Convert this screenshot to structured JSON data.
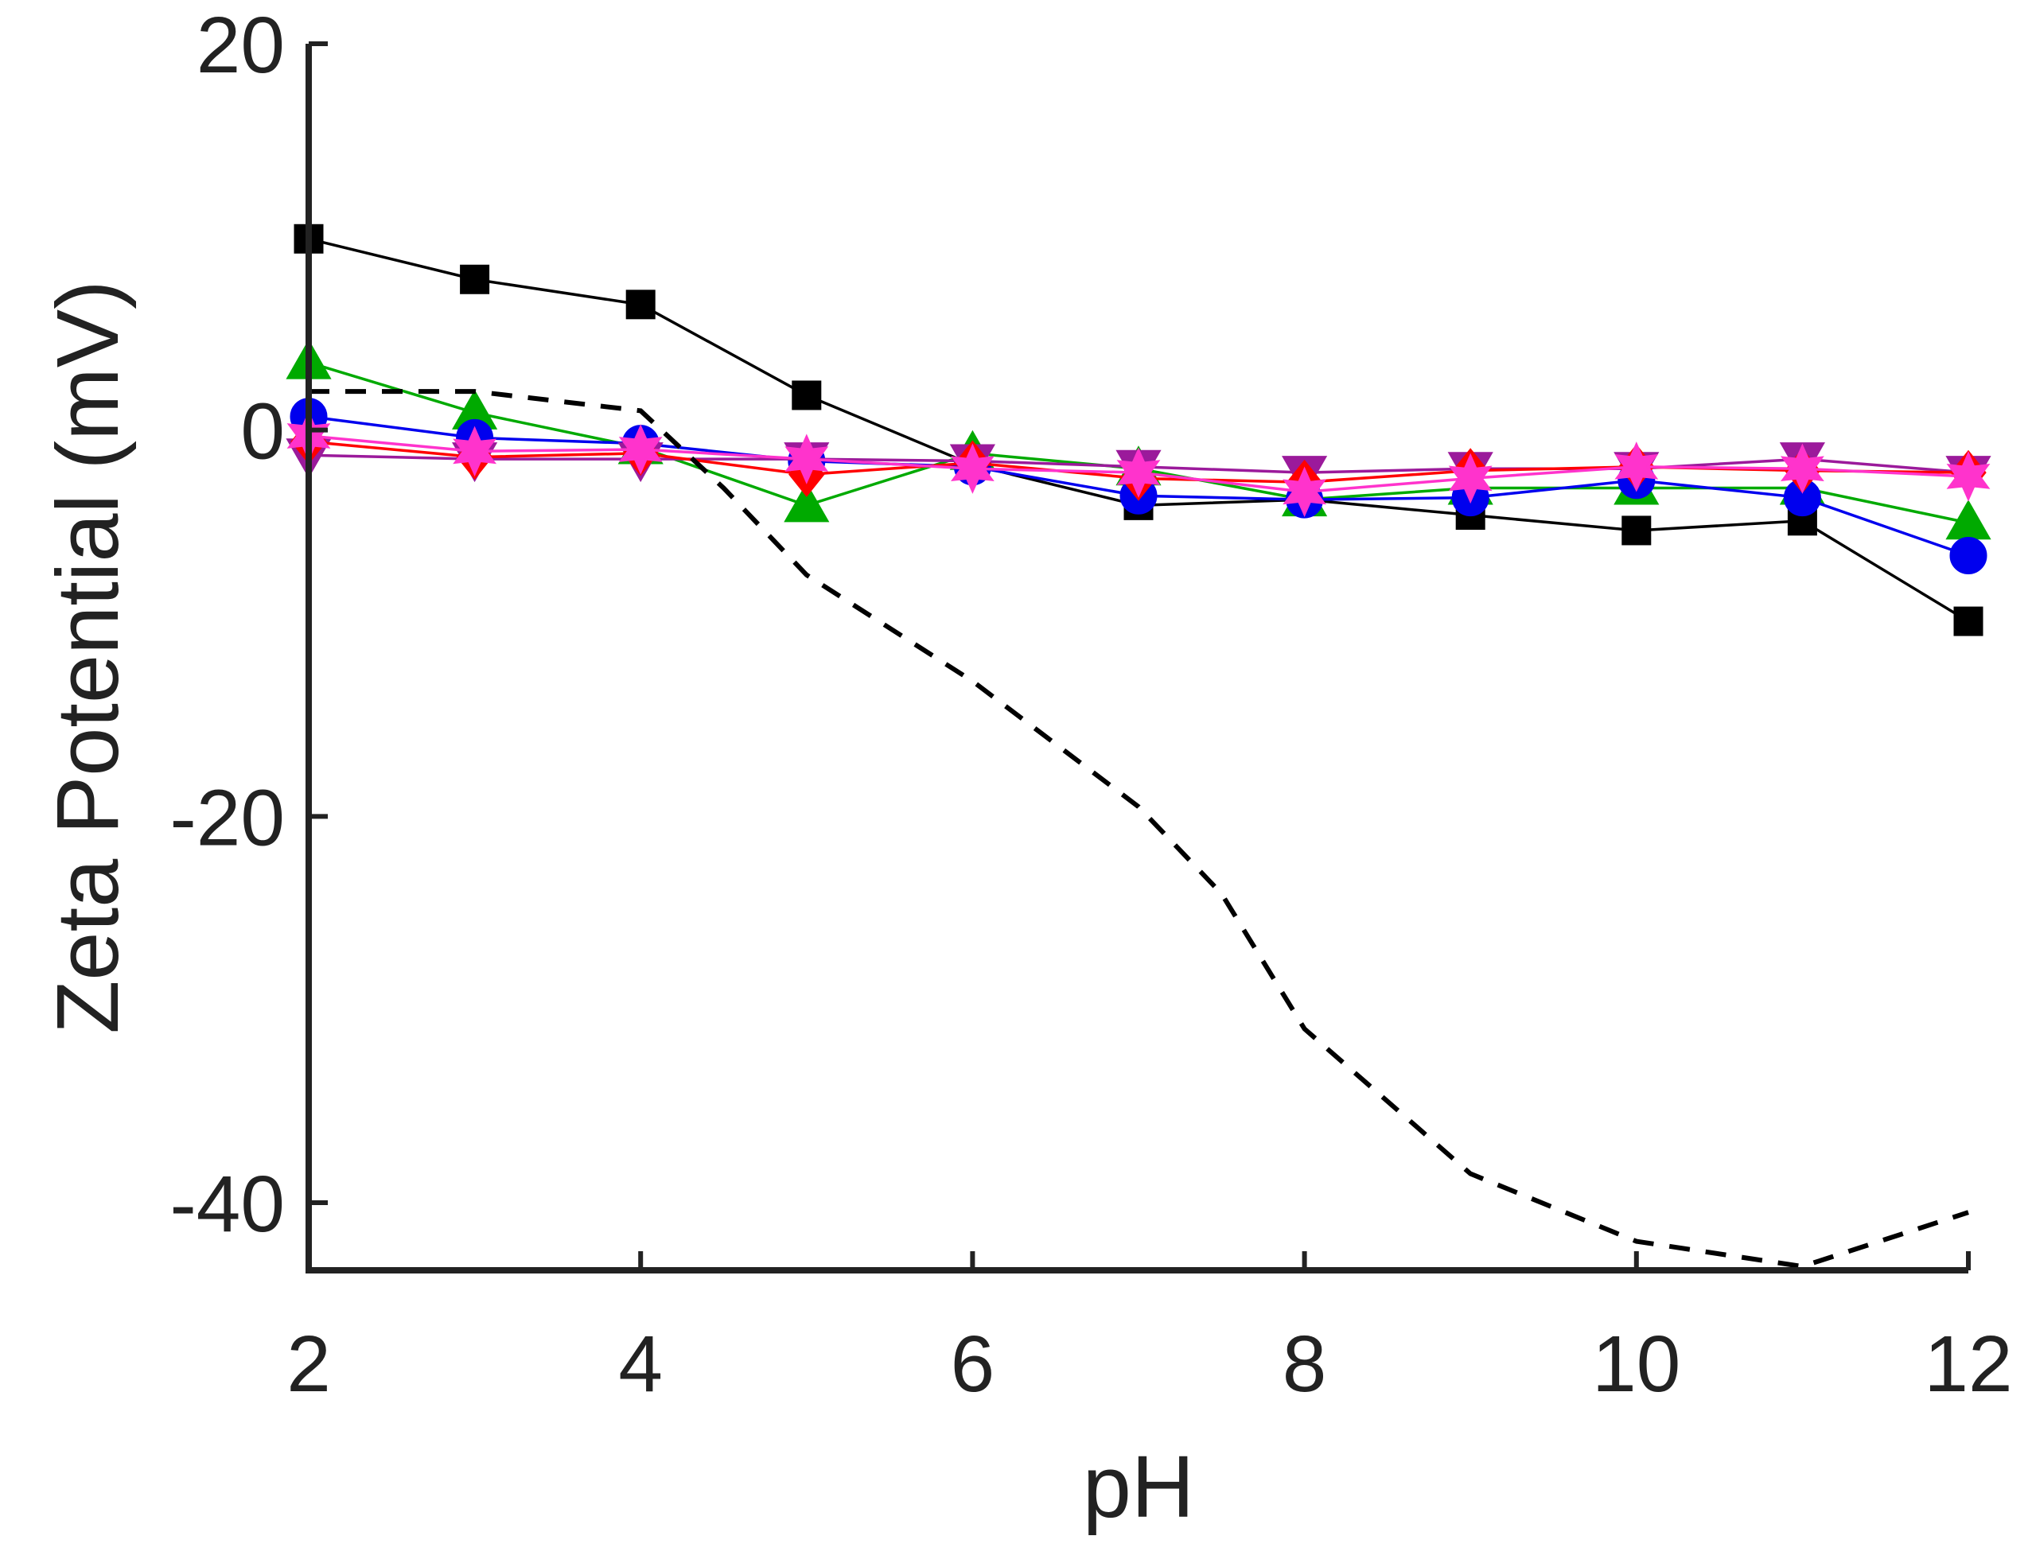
{
  "chart_data": {
    "type": "line",
    "title": "",
    "xlabel": "pH",
    "ylabel": "Zeta Potential (mV)",
    "xlim": [
      2,
      12
    ],
    "ylim": [
      -43.5,
      20
    ],
    "xticks": [
      2,
      4,
      6,
      8,
      10,
      12
    ],
    "yticks": [
      20,
      0,
      -20,
      -40
    ],
    "x": [
      2,
      3,
      4,
      5,
      6,
      7,
      8,
      9,
      10,
      11,
      12
    ],
    "series": [
      {
        "name": "black-square",
        "color": "#000000",
        "marker": "square",
        "values": [
          9.9,
          7.8,
          6.5,
          1.8,
          -1.8,
          -3.9,
          -3.6,
          -4.4,
          -5.2,
          -4.7,
          -9.9
        ]
      },
      {
        "name": "green-triangle",
        "color": "#00aa00",
        "marker": "triangle-up",
        "values": [
          3.5,
          0.9,
          -0.9,
          -3.9,
          -1.2,
          -2.0,
          -3.6,
          -3.0,
          -3.0,
          -3.0,
          -4.8
        ]
      },
      {
        "name": "blue-circle",
        "color": "#0000ee",
        "marker": "circle",
        "values": [
          0.7,
          -0.4,
          -0.7,
          -1.6,
          -1.9,
          -3.4,
          -3.6,
          -3.5,
          -2.6,
          -3.5,
          -6.5
        ]
      },
      {
        "name": "purple-triangle-down",
        "color": "#9b1a9b",
        "marker": "triangle-down",
        "values": [
          -1.3,
          -1.5,
          -1.5,
          -1.5,
          -1.6,
          -1.9,
          -2.2,
          -2.0,
          -2.0,
          -1.5,
          -2.2
        ]
      },
      {
        "name": "red-diamond",
        "color": "#ff0000",
        "marker": "diamond",
        "values": [
          -0.6,
          -1.4,
          -1.2,
          -2.3,
          -1.7,
          -2.5,
          -2.7,
          -2.1,
          -1.9,
          -2.1,
          -2.2
        ]
      },
      {
        "name": "magenta-star",
        "color": "#ff33cc",
        "marker": "star",
        "values": [
          -0.3,
          -1.1,
          -1.0,
          -1.5,
          -2.0,
          -2.2,
          -3.2,
          -2.5,
          -1.9,
          -2.0,
          -2.4
        ]
      },
      {
        "name": "reference-dashed",
        "color": "#000000",
        "marker": "none",
        "style": "dashed",
        "x": [
          2,
          3,
          4,
          4.5,
          5,
          6,
          7,
          7.5,
          8,
          9,
          10,
          11,
          12
        ],
        "values": [
          2.0,
          2.0,
          1.0,
          -3.0,
          -7.5,
          -13.0,
          -19.5,
          -24.0,
          -31.0,
          -38.5,
          -42.0,
          -43.3,
          -40.5
        ]
      }
    ]
  }
}
